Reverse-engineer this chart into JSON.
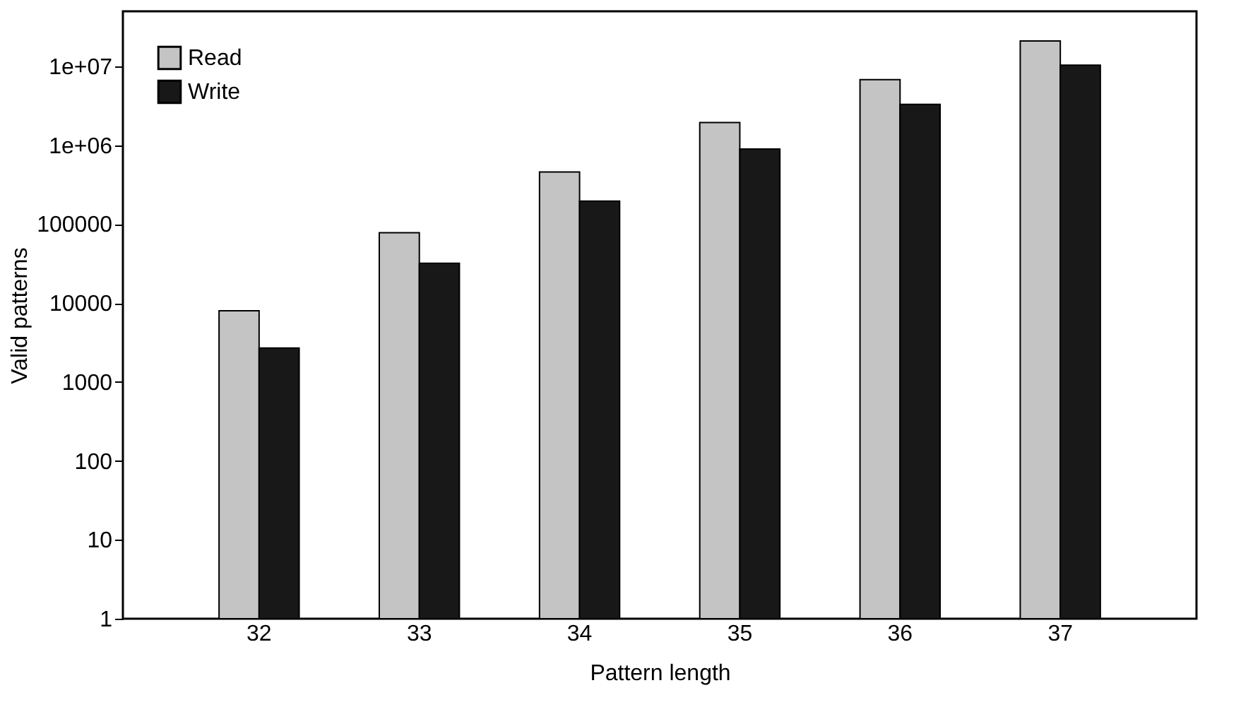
{
  "chart_data": {
    "type": "bar",
    "xlabel": "Pattern length",
    "ylabel": "Valid patterns",
    "categories": [
      "32",
      "33",
      "34",
      "35",
      "36",
      "37"
    ],
    "series": [
      {
        "name": "Read",
        "color": "#c4c4c4",
        "values": [
          8000,
          78000,
          460000,
          1950000,
          6800000,
          21000000
        ]
      },
      {
        "name": "Write",
        "color": "#181818",
        "values": [
          2700,
          32000,
          196000,
          900000,
          3300000,
          10400000
        ]
      }
    ],
    "log": "y",
    "ylim": [
      1,
      50000000
    ],
    "yticks": [
      1,
      10,
      100,
      1000,
      10000,
      100000,
      {
        "value": 1000000,
        "label": "1e+06"
      },
      {
        "value": 10000000,
        "label": "1e+07"
      }
    ],
    "grid": false,
    "legend": "top left"
  }
}
